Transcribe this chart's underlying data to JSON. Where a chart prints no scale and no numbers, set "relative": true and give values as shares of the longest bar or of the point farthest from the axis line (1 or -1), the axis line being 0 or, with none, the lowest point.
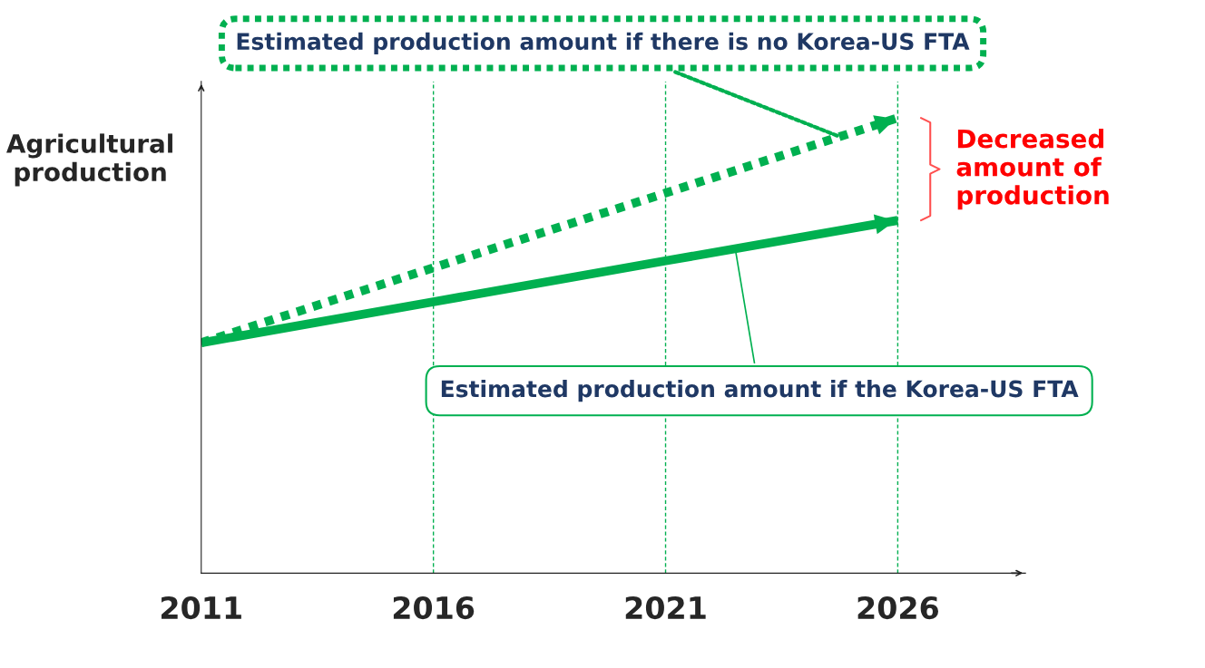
{
  "chart_data": {
    "type": "line",
    "relative": true,
    "ylabel": "Agricultural production",
    "categories": [
      "2011",
      "2016",
      "2021",
      "2026"
    ],
    "series": [
      {
        "color": "#00b050",
        "line_style": "dotted",
        "values": [
          0.506,
          0.671,
          0.835,
          1.0
        ]
      },
      {
        "color": "#00b050",
        "line_style": "solid",
        "values": [
          0.506,
          0.596,
          0.686,
          0.775
        ]
      }
    ],
    "annotations": [
      "Estimated production amount if there is no Korea-US FTA",
      "Estimated production amount if the Korea-US FTA",
      "Decreased amount of production"
    ],
    "grid": "x",
    "marker": "none"
  }
}
